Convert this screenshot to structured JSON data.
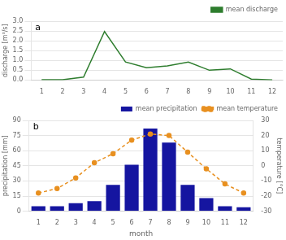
{
  "chart_data": [
    {
      "type": "line",
      "ylabel": "discharge [m³/s]",
      "annotations": [
        "a"
      ],
      "categories": [
        "1",
        "2",
        "3",
        "4",
        "5",
        "6",
        "7",
        "8",
        "9",
        "10",
        "11",
        "12"
      ],
      "series": [
        {
          "name": "mean discharge",
          "color": "#2e7d2e",
          "values": [
            0.02,
            0.02,
            0.15,
            2.47,
            0.92,
            0.63,
            0.72,
            0.92,
            0.5,
            0.57,
            0.05,
            0.01
          ]
        }
      ],
      "ylim": [
        0,
        3.0
      ],
      "yticks": [
        {
          "value": 0.0,
          "label": "0.0"
        },
        0.5,
        {
          "value": 1.0,
          "label": "1.0"
        },
        1.5,
        {
          "value": 2.0,
          "label": "2.0"
        },
        2.5,
        {
          "value": 3.0,
          "label": "3.0"
        }
      ],
      "grid": true,
      "legend": "upper right"
    },
    {
      "type": "bar",
      "xlabel": "month",
      "ylabel": "precipitation [mm]",
      "y2label": "temperature [°C]",
      "annotations": [
        "b"
      ],
      "categories": [
        "1",
        "2",
        "3",
        "4",
        "5",
        "6",
        "7",
        "8",
        "9",
        "10",
        "11",
        "12"
      ],
      "series": [
        {
          "name": "mean precipitation",
          "type": "bar",
          "color": "#1515a0",
          "values": [
            5,
            5,
            8,
            10,
            26,
            46,
            82,
            68,
            26,
            13,
            5,
            4
          ]
        },
        {
          "name": "mean temperature",
          "type": "line",
          "color": "#e89020",
          "axis": "y2",
          "marker": "circle",
          "line_style": "dashed",
          "values": [
            -18,
            -15,
            -8,
            2,
            8,
            17,
            21,
            20,
            9,
            -2,
            -12,
            -18
          ]
        }
      ],
      "ylim": [
        0,
        90
      ],
      "yticks": [
        0,
        15,
        30,
        45,
        60,
        75,
        90
      ],
      "y2lim": [
        -30,
        30
      ],
      "y2ticks": [
        -30,
        -20,
        -10,
        0,
        10,
        20,
        30
      ],
      "grid": true,
      "legend": "upper right"
    }
  ]
}
